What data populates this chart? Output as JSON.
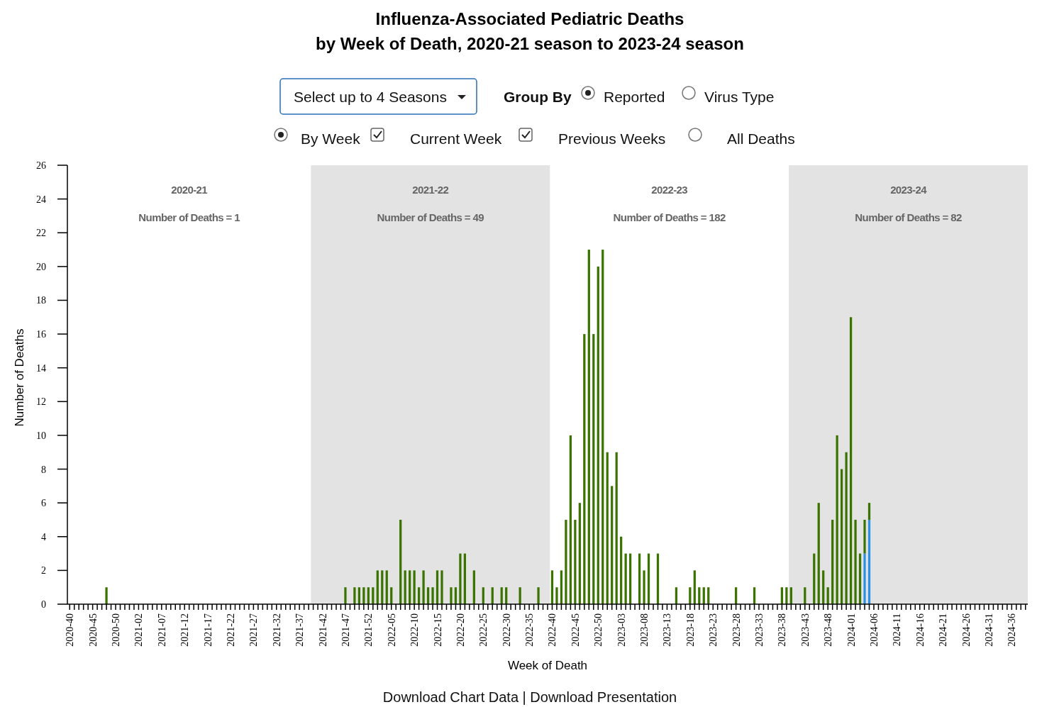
{
  "chart_data": {
    "type": "bar",
    "title": "Influenza-Associated Pediatric Deaths",
    "subtitle": "by Week of Death, 2020-21 season to 2023-24 season",
    "xlabel": "Week of Death",
    "ylabel": "Number of Deaths",
    "stacked": true,
    "grid": false,
    "categories": [
      "2020-40",
      null,
      null,
      null,
      null,
      "2020-45",
      null,
      null,
      null,
      null,
      "2020-50",
      null,
      null,
      null,
      null,
      "2021-02",
      null,
      null,
      null,
      null,
      "2021-07",
      null,
      null,
      null,
      null,
      "2021-12",
      null,
      null,
      null,
      null,
      "2021-17",
      null,
      null,
      null,
      null,
      "2021-22",
      null,
      null,
      null,
      null,
      "2021-27",
      null,
      null,
      null,
      null,
      "2021-32",
      null,
      null,
      null,
      null,
      "2021-37",
      null,
      null,
      null,
      null,
      "2021-42",
      null,
      null,
      null,
      null,
      "2021-47",
      null,
      null,
      null,
      null,
      "2021-52",
      null,
      null,
      null,
      null,
      "2022-05",
      null,
      null,
      null,
      null,
      "2022-10",
      null,
      null,
      null,
      null,
      "2022-15",
      null,
      null,
      null,
      null,
      "2022-20",
      null,
      null,
      null,
      null,
      "2022-25",
      null,
      null,
      null,
      null,
      "2022-30",
      null,
      null,
      null,
      null,
      "2022-35",
      null,
      null,
      null,
      null,
      "2022-40",
      null,
      null,
      null,
      null,
      "2022-45",
      null,
      null,
      null,
      null,
      "2022-50",
      null,
      null,
      null,
      null,
      "2023-03",
      null,
      null,
      null,
      null,
      "2023-08",
      null,
      null,
      null,
      null,
      "2023-13",
      null,
      null,
      null,
      null,
      "2023-18",
      null,
      null,
      null,
      null,
      "2023-23",
      null,
      null,
      null,
      null,
      "2023-28",
      null,
      null,
      null,
      null,
      "2023-33",
      null,
      null,
      null,
      null,
      "2023-38",
      null,
      null,
      null,
      null,
      "2023-43",
      null,
      null,
      null,
      null,
      "2023-48",
      null,
      null,
      null,
      null,
      "2024-01",
      null,
      null,
      null,
      null,
      "2024-06",
      null,
      null,
      null,
      null,
      "2024-11",
      null,
      null,
      null,
      null,
      "2024-16",
      null,
      null,
      null,
      null,
      "2024-21",
      null,
      null,
      null,
      null,
      "2024-26",
      null,
      null,
      null,
      null,
      "2024-31",
      null,
      null,
      null,
      null,
      "2024-36",
      null,
      null,
      null
    ],
    "series": [
      {
        "color": "#2b8fe6",
        "values": [
          null,
          null,
          null,
          null,
          null,
          null,
          null,
          null,
          null,
          null,
          null,
          null,
          null,
          null,
          null,
          null,
          null,
          null,
          null,
          null,
          null,
          null,
          null,
          null,
          null,
          null,
          null,
          null,
          null,
          null,
          null,
          null,
          null,
          null,
          null,
          null,
          null,
          null,
          null,
          null,
          null,
          null,
          null,
          null,
          null,
          null,
          null,
          null,
          null,
          null,
          null,
          null,
          null,
          null,
          null,
          null,
          null,
          null,
          null,
          null,
          null,
          null,
          null,
          null,
          null,
          null,
          null,
          null,
          null,
          null,
          null,
          null,
          null,
          null,
          null,
          null,
          null,
          null,
          null,
          null,
          null,
          null,
          null,
          null,
          null,
          null,
          null,
          null,
          null,
          null,
          null,
          null,
          null,
          null,
          null,
          null,
          null,
          null,
          null,
          null,
          null,
          null,
          null,
          null,
          null,
          null,
          null,
          null,
          null,
          null,
          null,
          null,
          null,
          null,
          null,
          null,
          null,
          null,
          null,
          null,
          null,
          null,
          null,
          null,
          null,
          null,
          null,
          null,
          null,
          null,
          null,
          null,
          null,
          null,
          null,
          null,
          null,
          null,
          null,
          null,
          null,
          null,
          null,
          null,
          null,
          null,
          null,
          null,
          null,
          null,
          null,
          null,
          null,
          null,
          null,
          null,
          null,
          null,
          null,
          null,
          null,
          null,
          null,
          null,
          null,
          null,
          null,
          null,
          null,
          null,
          null,
          null,
          null,
          3,
          5,
          null,
          null,
          null,
          null,
          null,
          null,
          null,
          null,
          null,
          null,
          null,
          null,
          null,
          null,
          null,
          null,
          null,
          null,
          null,
          null,
          null,
          null,
          null,
          null,
          null,
          null,
          null,
          null,
          null,
          null,
          null,
          null,
          null,
          null
        ]
      },
      {
        "color": "#3a7300",
        "values": [
          0,
          0,
          0,
          0,
          0,
          0,
          0,
          0,
          1,
          0,
          0,
          0,
          0,
          0,
          0,
          0,
          0,
          0,
          0,
          0,
          0,
          0,
          0,
          0,
          0,
          0,
          0,
          0,
          0,
          0,
          0,
          0,
          0,
          0,
          0,
          0,
          0,
          0,
          0,
          0,
          0,
          0,
          0,
          0,
          0,
          0,
          0,
          0,
          0,
          0,
          0,
          0,
          0,
          0,
          0,
          0,
          0,
          0,
          0,
          0,
          1,
          0,
          1,
          1,
          1,
          1,
          1,
          2,
          2,
          2,
          1,
          0,
          5,
          2,
          2,
          2,
          1,
          2,
          1,
          1,
          2,
          2,
          0,
          1,
          1,
          3,
          3,
          0,
          2,
          0,
          1,
          0,
          1,
          0,
          1,
          1,
          0,
          0,
          1,
          0,
          0,
          0,
          1,
          0,
          0,
          2,
          1,
          2,
          5,
          10,
          5,
          6,
          16,
          21,
          16,
          20,
          21,
          9,
          7,
          9,
          4,
          3,
          3,
          0,
          3,
          2,
          3,
          0,
          3,
          0,
          0,
          0,
          1,
          0,
          0,
          1,
          2,
          1,
          1,
          1,
          0,
          0,
          0,
          0,
          0,
          1,
          0,
          0,
          0,
          1,
          0,
          0,
          0,
          0,
          0,
          1,
          1,
          1,
          0,
          0,
          1,
          0,
          3,
          6,
          2,
          1,
          5,
          10,
          8,
          9,
          17,
          5,
          3,
          2,
          1,
          0,
          0,
          0,
          0,
          0,
          0,
          0,
          0,
          0,
          0,
          0,
          0,
          0,
          0,
          0,
          0,
          0,
          0,
          0,
          0,
          0,
          0,
          0,
          0,
          0,
          0,
          0,
          0,
          0,
          0,
          0,
          0,
          0,
          0
        ]
      }
    ],
    "ylim": [
      0,
      26
    ],
    "yticks": [
      0,
      2,
      4,
      6,
      8,
      10,
      12,
      14,
      16,
      18,
      20,
      22,
      24,
      26
    ],
    "annotations": [
      "Select up to 4 Seasons",
      "Group By",
      "Reported",
      "Virus Type",
      "By Week",
      "Current Week",
      "Previous Weeks",
      "All Deaths",
      "Download Chart Data | Download Presentation",
      "2020-21",
      "Number of Deaths = 1",
      "2021-22",
      "Number of Deaths = 49",
      "2022-23",
      "Number of Deaths = 182",
      "2023-24",
      "Number of Deaths = 82"
    ]
  }
}
